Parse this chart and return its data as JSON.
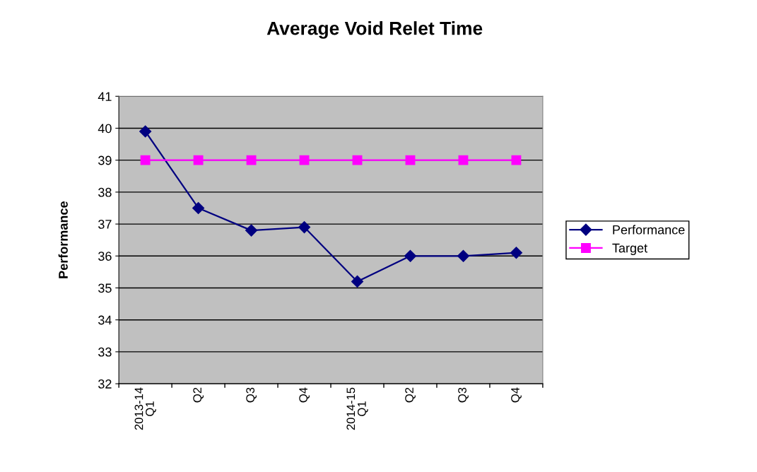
{
  "chart_data": {
    "type": "line",
    "title": "Average Void Relet Time",
    "ylabel": "Performance",
    "categories": [
      "2013-14\nQ1",
      "Q2",
      "Q3",
      "Q4",
      "2014-15\nQ1",
      "Q2",
      "Q3",
      "Q4"
    ],
    "series": [
      {
        "name": "Performance",
        "color": "#000080",
        "marker": "diamond",
        "values": [
          39.9,
          37.5,
          36.8,
          36.9,
          35.2,
          36.0,
          36.0,
          36.1
        ]
      },
      {
        "name": "Target",
        "color": "#ff00ff",
        "marker": "square",
        "values": [
          39,
          39,
          39,
          39,
          39,
          39,
          39,
          39
        ]
      }
    ],
    "ylim": [
      32,
      41
    ],
    "yticks": [
      32,
      33,
      34,
      35,
      36,
      37,
      38,
      39,
      40,
      41
    ],
    "grid": "y",
    "legend": "right",
    "line_style": "solid"
  }
}
